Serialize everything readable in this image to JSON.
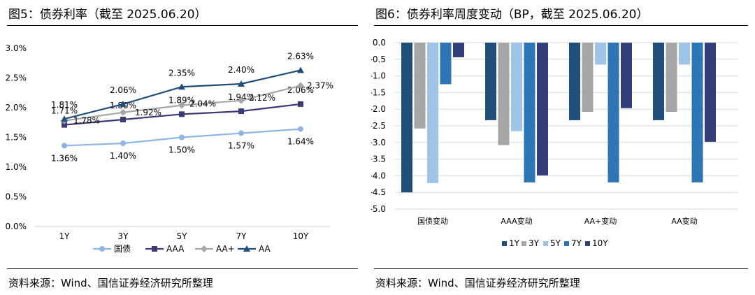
{
  "left_panel": {
    "title": "图5：债券利率（截至 2025.06.20）",
    "source": "资料来源：Wind、国信证券经济研究所整理"
  },
  "right_panel": {
    "title": "图6：债券利率周度变动（BP，截至 2025.06.20）",
    "source": "资料来源：Wind、国信证券经济研究所整理"
  },
  "chart_data": [
    {
      "type": "line",
      "categories": [
        "1Y",
        "3Y",
        "5Y",
        "7Y",
        "10Y"
      ],
      "y_ticks": [
        "3.0%",
        "2.5%",
        "2.0%",
        "1.5%",
        "1.0%",
        "0.5%",
        "0.0%"
      ],
      "ylim": [
        0,
        3.0
      ],
      "legend_position": "bottom",
      "series": [
        {
          "name": "国债",
          "color": "#8fb4e3",
          "marker": "circle",
          "values": [
            1.36,
            1.4,
            1.5,
            1.57,
            1.64
          ],
          "labels": [
            "1.36%",
            "1.40%",
            "1.50%",
            "1.57%",
            "1.64%"
          ]
        },
        {
          "name": "AAA",
          "color": "#3b3b78",
          "marker": "square",
          "values": [
            1.71,
            1.8,
            1.89,
            1.94,
            2.06
          ],
          "labels": [
            "1.71%",
            "1.80%",
            "1.89%",
            "1.94%",
            "2.06%"
          ]
        },
        {
          "name": "AA+",
          "color": "#a6a6a6",
          "marker": "diamond",
          "values": [
            1.78,
            1.92,
            2.04,
            2.12,
            2.37
          ],
          "labels": [
            "1.78%",
            "1.92%",
            "2.04%",
            "2.12%",
            "2.37%"
          ]
        },
        {
          "name": "AA",
          "color": "#1f4e79",
          "marker": "triangle",
          "values": [
            1.81,
            2.06,
            2.35,
            2.4,
            2.63
          ],
          "labels": [
            "1.81%",
            "2.06%",
            "2.35%",
            "2.40%",
            "2.63%"
          ]
        }
      ]
    },
    {
      "type": "bar",
      "categories": [
        "国债变动",
        "AAA变动",
        "AA+变动",
        "AA变动"
      ],
      "y_ticks": [
        "0.0",
        "-0.5",
        "-1.0",
        "-1.5",
        "-2.0",
        "-2.5",
        "-3.0",
        "-3.5",
        "-4.0",
        "-4.5",
        "-5.0"
      ],
      "ylim": [
        -5.0,
        0.0
      ],
      "grid": true,
      "legend_position": "bottom",
      "series": [
        {
          "name": "1Y",
          "color": "#1f4e79",
          "values": [
            -4.5,
            -2.33,
            -2.33,
            -2.33
          ]
        },
        {
          "name": "3Y",
          "color": "#a6a6a6",
          "values": [
            -2.58,
            -3.08,
            -2.08,
            -2.08
          ]
        },
        {
          "name": "5Y",
          "color": "#9dc3e6",
          "values": [
            -4.22,
            -2.66,
            -0.66,
            -0.66
          ]
        },
        {
          "name": "7Y",
          "color": "#2e75b6",
          "values": [
            -1.25,
            -4.2,
            -4.2,
            -4.2
          ]
        },
        {
          "name": "10Y",
          "color": "#333f7a",
          "values": [
            -0.44,
            -3.99,
            -1.97,
            -2.98
          ]
        }
      ]
    }
  ]
}
